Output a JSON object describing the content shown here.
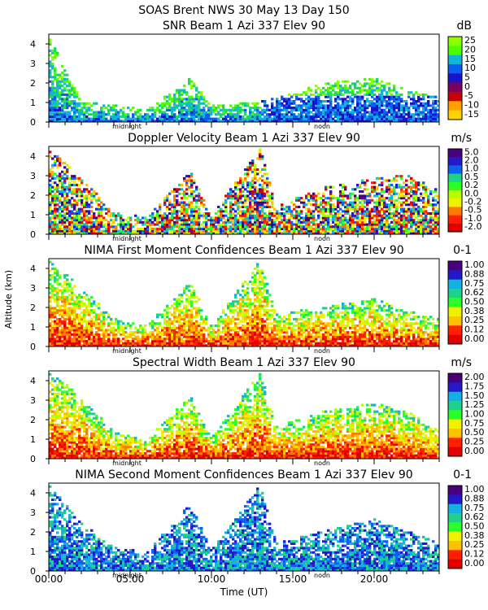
{
  "header": {
    "line1": "SOAS Brent NWS  30 May 13 Day 150"
  },
  "y_axis_label": "Altitude (km)",
  "x_axis_label": "Time (UT)",
  "x_ticks": [
    "00:00",
    "05:00",
    "10:00",
    "15:00",
    "20:00"
  ],
  "markers": {
    "midnight": "midnight",
    "noon": "noon"
  },
  "colors": {
    "snr": [
      "#8cff00",
      "#4cff00",
      "#22d85a",
      "#12b4d8",
      "#0a5ef0",
      "#1a14c8",
      "#5a009e",
      "#7a0060",
      "#c80000",
      "#ff5a00",
      "#ffa000",
      "#ffd200"
    ],
    "rainbow": [
      "#4a007a",
      "#2418c8",
      "#1060f0",
      "#16b0e0",
      "#1ed28a",
      "#2aff2a",
      "#b4ff00",
      "#f0f000",
      "#ffc000",
      "#ff7a00",
      "#ff2000",
      "#e00000"
    ]
  },
  "chart_data": [
    {
      "type": "heatmap",
      "title": "SNR Beam 1 Azi 337 Elev 90",
      "unit": "dB",
      "xlabel": "Time (UT)",
      "ylabel": "Altitude (km)",
      "xlim": [
        0,
        24
      ],
      "ylim": [
        0,
        4.5
      ],
      "yticks": [
        "0",
        "1",
        "2",
        "3",
        "4"
      ],
      "colorbar_labels": [
        "25",
        "20",
        "15",
        "10",
        "5",
        "0",
        "-5",
        "-10",
        "-15"
      ],
      "palette": "snr",
      "profile": [
        {
          "x": 0,
          "top": 4.4
        },
        {
          "x": 2,
          "top": 1.0
        },
        {
          "x": 4,
          "top": 0.8
        },
        {
          "x": 6,
          "top": 0.6
        },
        {
          "x": 8.7,
          "top": 2.2
        },
        {
          "x": 10,
          "top": 0.8
        },
        {
          "x": 13,
          "top": 1.0
        },
        {
          "x": 15,
          "top": 1.4
        },
        {
          "x": 17,
          "top": 2.0
        },
        {
          "x": 20,
          "top": 2.2
        },
        {
          "x": 22,
          "top": 1.6
        },
        {
          "x": 24,
          "top": 1.2
        }
      ]
    },
    {
      "type": "heatmap",
      "title": "Doppler Velocity Beam 1 Azi 337 Elev 90",
      "unit": "m/s",
      "xlabel": "Time (UT)",
      "ylabel": "Altitude (km)",
      "xlim": [
        0,
        24
      ],
      "ylim": [
        0,
        4.5
      ],
      "yticks": [
        "0",
        "1",
        "2",
        "3",
        "4"
      ],
      "colorbar_labels": [
        "5.0",
        "2.0",
        "1.0",
        "0.5",
        "0.2",
        "0.0",
        "-0.2",
        "-0.5",
        "-1.0",
        "-2.0"
      ],
      "palette": "rainbow",
      "profile": [
        {
          "x": 0,
          "top": 4.4
        },
        {
          "x": 2,
          "top": 2.8
        },
        {
          "x": 4,
          "top": 1.2
        },
        {
          "x": 6,
          "top": 0.8
        },
        {
          "x": 8.7,
          "top": 3.2
        },
        {
          "x": 10,
          "top": 0.9
        },
        {
          "x": 13,
          "top": 4.4
        },
        {
          "x": 14,
          "top": 1.4
        },
        {
          "x": 17,
          "top": 2.4
        },
        {
          "x": 20,
          "top": 2.8
        },
        {
          "x": 22,
          "top": 3.0
        },
        {
          "x": 24,
          "top": 2.2
        }
      ]
    },
    {
      "type": "heatmap",
      "title": "NIMA First Moment Confidences Beam 1 Azi 337 Elev 90",
      "unit": "0-1",
      "xlabel": "Time (UT)",
      "ylabel": "Altitude (km)",
      "xlim": [
        0,
        24
      ],
      "ylim": [
        0,
        4.5
      ],
      "yticks": [
        "0",
        "1",
        "2",
        "3",
        "4"
      ],
      "colorbar_labels": [
        "1.00",
        "0.88",
        "0.75",
        "0.62",
        "0.50",
        "0.38",
        "0.25",
        "0.12",
        "0.00"
      ],
      "palette": "rainbow",
      "profile": [
        {
          "x": 0,
          "top": 4.4
        },
        {
          "x": 2,
          "top": 3.0
        },
        {
          "x": 4,
          "top": 1.4
        },
        {
          "x": 6,
          "top": 1.0
        },
        {
          "x": 8.7,
          "top": 3.3
        },
        {
          "x": 10,
          "top": 1.0
        },
        {
          "x": 13,
          "top": 4.4
        },
        {
          "x": 14,
          "top": 1.6
        },
        {
          "x": 17,
          "top": 2.0
        },
        {
          "x": 20,
          "top": 2.4
        },
        {
          "x": 22,
          "top": 1.8
        },
        {
          "x": 24,
          "top": 1.4
        }
      ]
    },
    {
      "type": "heatmap",
      "title": "Spectral Width Beam 1 Azi 337 Elev 90",
      "unit": "m/s",
      "xlabel": "Time (UT)",
      "ylabel": "Altitude (km)",
      "xlim": [
        0,
        24
      ],
      "ylim": [
        0,
        4.5
      ],
      "yticks": [
        "0",
        "1",
        "2",
        "3",
        "4"
      ],
      "colorbar_labels": [
        "2.00",
        "1.75",
        "1.50",
        "1.25",
        "1.00",
        "0.75",
        "0.50",
        "0.25",
        "0.00"
      ],
      "palette": "rainbow",
      "profile": [
        {
          "x": 0,
          "top": 4.4
        },
        {
          "x": 2,
          "top": 3.2
        },
        {
          "x": 4,
          "top": 1.3
        },
        {
          "x": 6,
          "top": 0.9
        },
        {
          "x": 8.7,
          "top": 3.2
        },
        {
          "x": 10,
          "top": 1.0
        },
        {
          "x": 13,
          "top": 4.4
        },
        {
          "x": 14,
          "top": 1.6
        },
        {
          "x": 17,
          "top": 2.4
        },
        {
          "x": 20,
          "top": 2.8
        },
        {
          "x": 22,
          "top": 2.4
        },
        {
          "x": 24,
          "top": 1.4
        }
      ]
    },
    {
      "type": "heatmap",
      "title": "NIMA Second Moment Confidences Beam 1 Azi 337 Elev 90",
      "unit": "0-1",
      "xlabel": "Time (UT)",
      "ylabel": "Altitude (km)",
      "xlim": [
        0,
        24
      ],
      "ylim": [
        0,
        4.5
      ],
      "yticks": [
        "0",
        "1",
        "2",
        "3",
        "4"
      ],
      "colorbar_labels": [
        "1.00",
        "0.88",
        "0.75",
        "0.62",
        "0.50",
        "0.38",
        "0.25",
        "0.12",
        "0.00"
      ],
      "palette": "rainbow",
      "profile": [
        {
          "x": 0,
          "top": 4.4
        },
        {
          "x": 2,
          "top": 2.4
        },
        {
          "x": 4,
          "top": 1.2
        },
        {
          "x": 6,
          "top": 0.9
        },
        {
          "x": 8.7,
          "top": 3.4
        },
        {
          "x": 10,
          "top": 1.0
        },
        {
          "x": 13,
          "top": 4.4
        },
        {
          "x": 14,
          "top": 1.4
        },
        {
          "x": 17,
          "top": 2.0
        },
        {
          "x": 20,
          "top": 2.6
        },
        {
          "x": 22,
          "top": 2.0
        },
        {
          "x": 24,
          "top": 1.4
        }
      ]
    }
  ]
}
